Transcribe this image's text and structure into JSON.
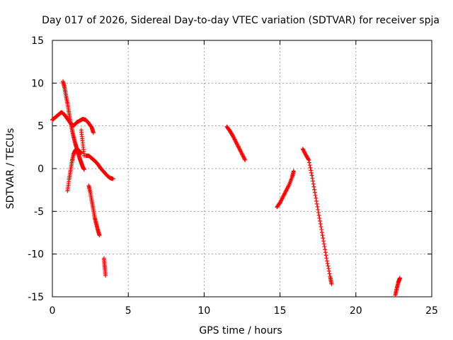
{
  "chart_data": {
    "type": "scatter",
    "title": "Day 017 of 2026, Sidereal Day-to-day VTEC variation (SDTVAR) for receiver spja",
    "xlabel": "GPS time / hours",
    "ylabel": "SDTVAR / TECUs",
    "xlim": [
      0,
      25
    ],
    "ylim": [
      -15,
      15
    ],
    "xticks": [
      "0",
      "5",
      "10",
      "15",
      "20",
      "25"
    ],
    "yticks": [
      "-15",
      "-10",
      "-5",
      "0",
      "5",
      "10",
      "15"
    ],
    "grid": true,
    "marker_color": "#ff0000",
    "marker": "+",
    "series": [
      {
        "x": [
          0.0,
          0.2,
          0.4,
          0.6,
          0.8,
          1.0,
          1.2,
          1.4,
          1.6,
          1.8,
          2.0,
          2.2,
          2.4,
          2.6,
          2.7
        ],
        "y": [
          5.7,
          6.0,
          6.3,
          6.6,
          6.3,
          5.8,
          5.3,
          5.0,
          5.4,
          5.6,
          5.8,
          5.7,
          5.3,
          4.8,
          4.2
        ]
      },
      {
        "x": [
          0.7,
          0.8,
          0.9,
          1.0,
          1.1,
          1.2,
          1.3,
          1.4,
          1.5,
          1.6,
          1.7,
          1.8,
          1.9,
          2.0,
          2.1
        ],
        "y": [
          10.2,
          9.5,
          8.5,
          7.6,
          6.5,
          5.4,
          4.5,
          3.7,
          3.0,
          2.4,
          1.8,
          1.2,
          0.7,
          0.2,
          -0.1
        ]
      },
      {
        "x": [
          1.0,
          1.1,
          1.2,
          1.3,
          1.4,
          1.5,
          1.6,
          1.7,
          1.8,
          1.9
        ],
        "y": [
          -2.6,
          -1.3,
          -0.2,
          0.9,
          1.7,
          2.1,
          2.3,
          2.2,
          2.0,
          1.8
        ]
      },
      {
        "x": [
          1.9,
          2.0,
          2.1
        ],
        "y": [
          4.5,
          3.0,
          1.5
        ]
      },
      {
        "x": [
          2.2,
          2.4,
          2.6,
          2.8,
          3.0,
          3.2,
          3.4,
          3.6,
          3.8,
          4.0
        ],
        "y": [
          1.5,
          1.5,
          1.2,
          0.9,
          0.5,
          0.0,
          -0.4,
          -0.8,
          -1.1,
          -1.2
        ]
      },
      {
        "x": [
          2.4,
          2.5,
          2.6,
          2.7,
          2.8,
          2.9,
          3.0,
          3.1
        ],
        "y": [
          -2.0,
          -2.8,
          -3.8,
          -4.8,
          -5.8,
          -6.5,
          -7.2,
          -7.8
        ]
      },
      {
        "x": [
          3.4,
          3.45,
          3.5
        ],
        "y": [
          -10.5,
          -11.5,
          -12.5
        ]
      },
      {
        "x": [
          11.5,
          11.7,
          11.9,
          12.1,
          12.3,
          12.5,
          12.7
        ],
        "y": [
          4.9,
          4.4,
          3.8,
          3.1,
          2.4,
          1.7,
          1.0
        ]
      },
      {
        "x": [
          14.8,
          15.0,
          15.2,
          15.4,
          15.6,
          15.8,
          15.9
        ],
        "y": [
          -4.5,
          -4.0,
          -3.3,
          -2.6,
          -1.9,
          -1.0,
          -0.3
        ]
      },
      {
        "x": [
          16.5,
          16.7,
          16.9,
          17.1,
          17.3,
          17.5,
          17.7,
          17.9,
          18.1,
          18.3,
          18.4
        ],
        "y": [
          2.3,
          1.6,
          1.0,
          -0.8,
          -2.8,
          -4.8,
          -6.8,
          -8.8,
          -10.8,
          -12.6,
          -13.5
        ]
      },
      {
        "x": [
          22.6,
          22.7,
          22.8,
          22.9
        ],
        "y": [
          -14.8,
          -14.0,
          -13.3,
          -12.8
        ]
      }
    ]
  }
}
